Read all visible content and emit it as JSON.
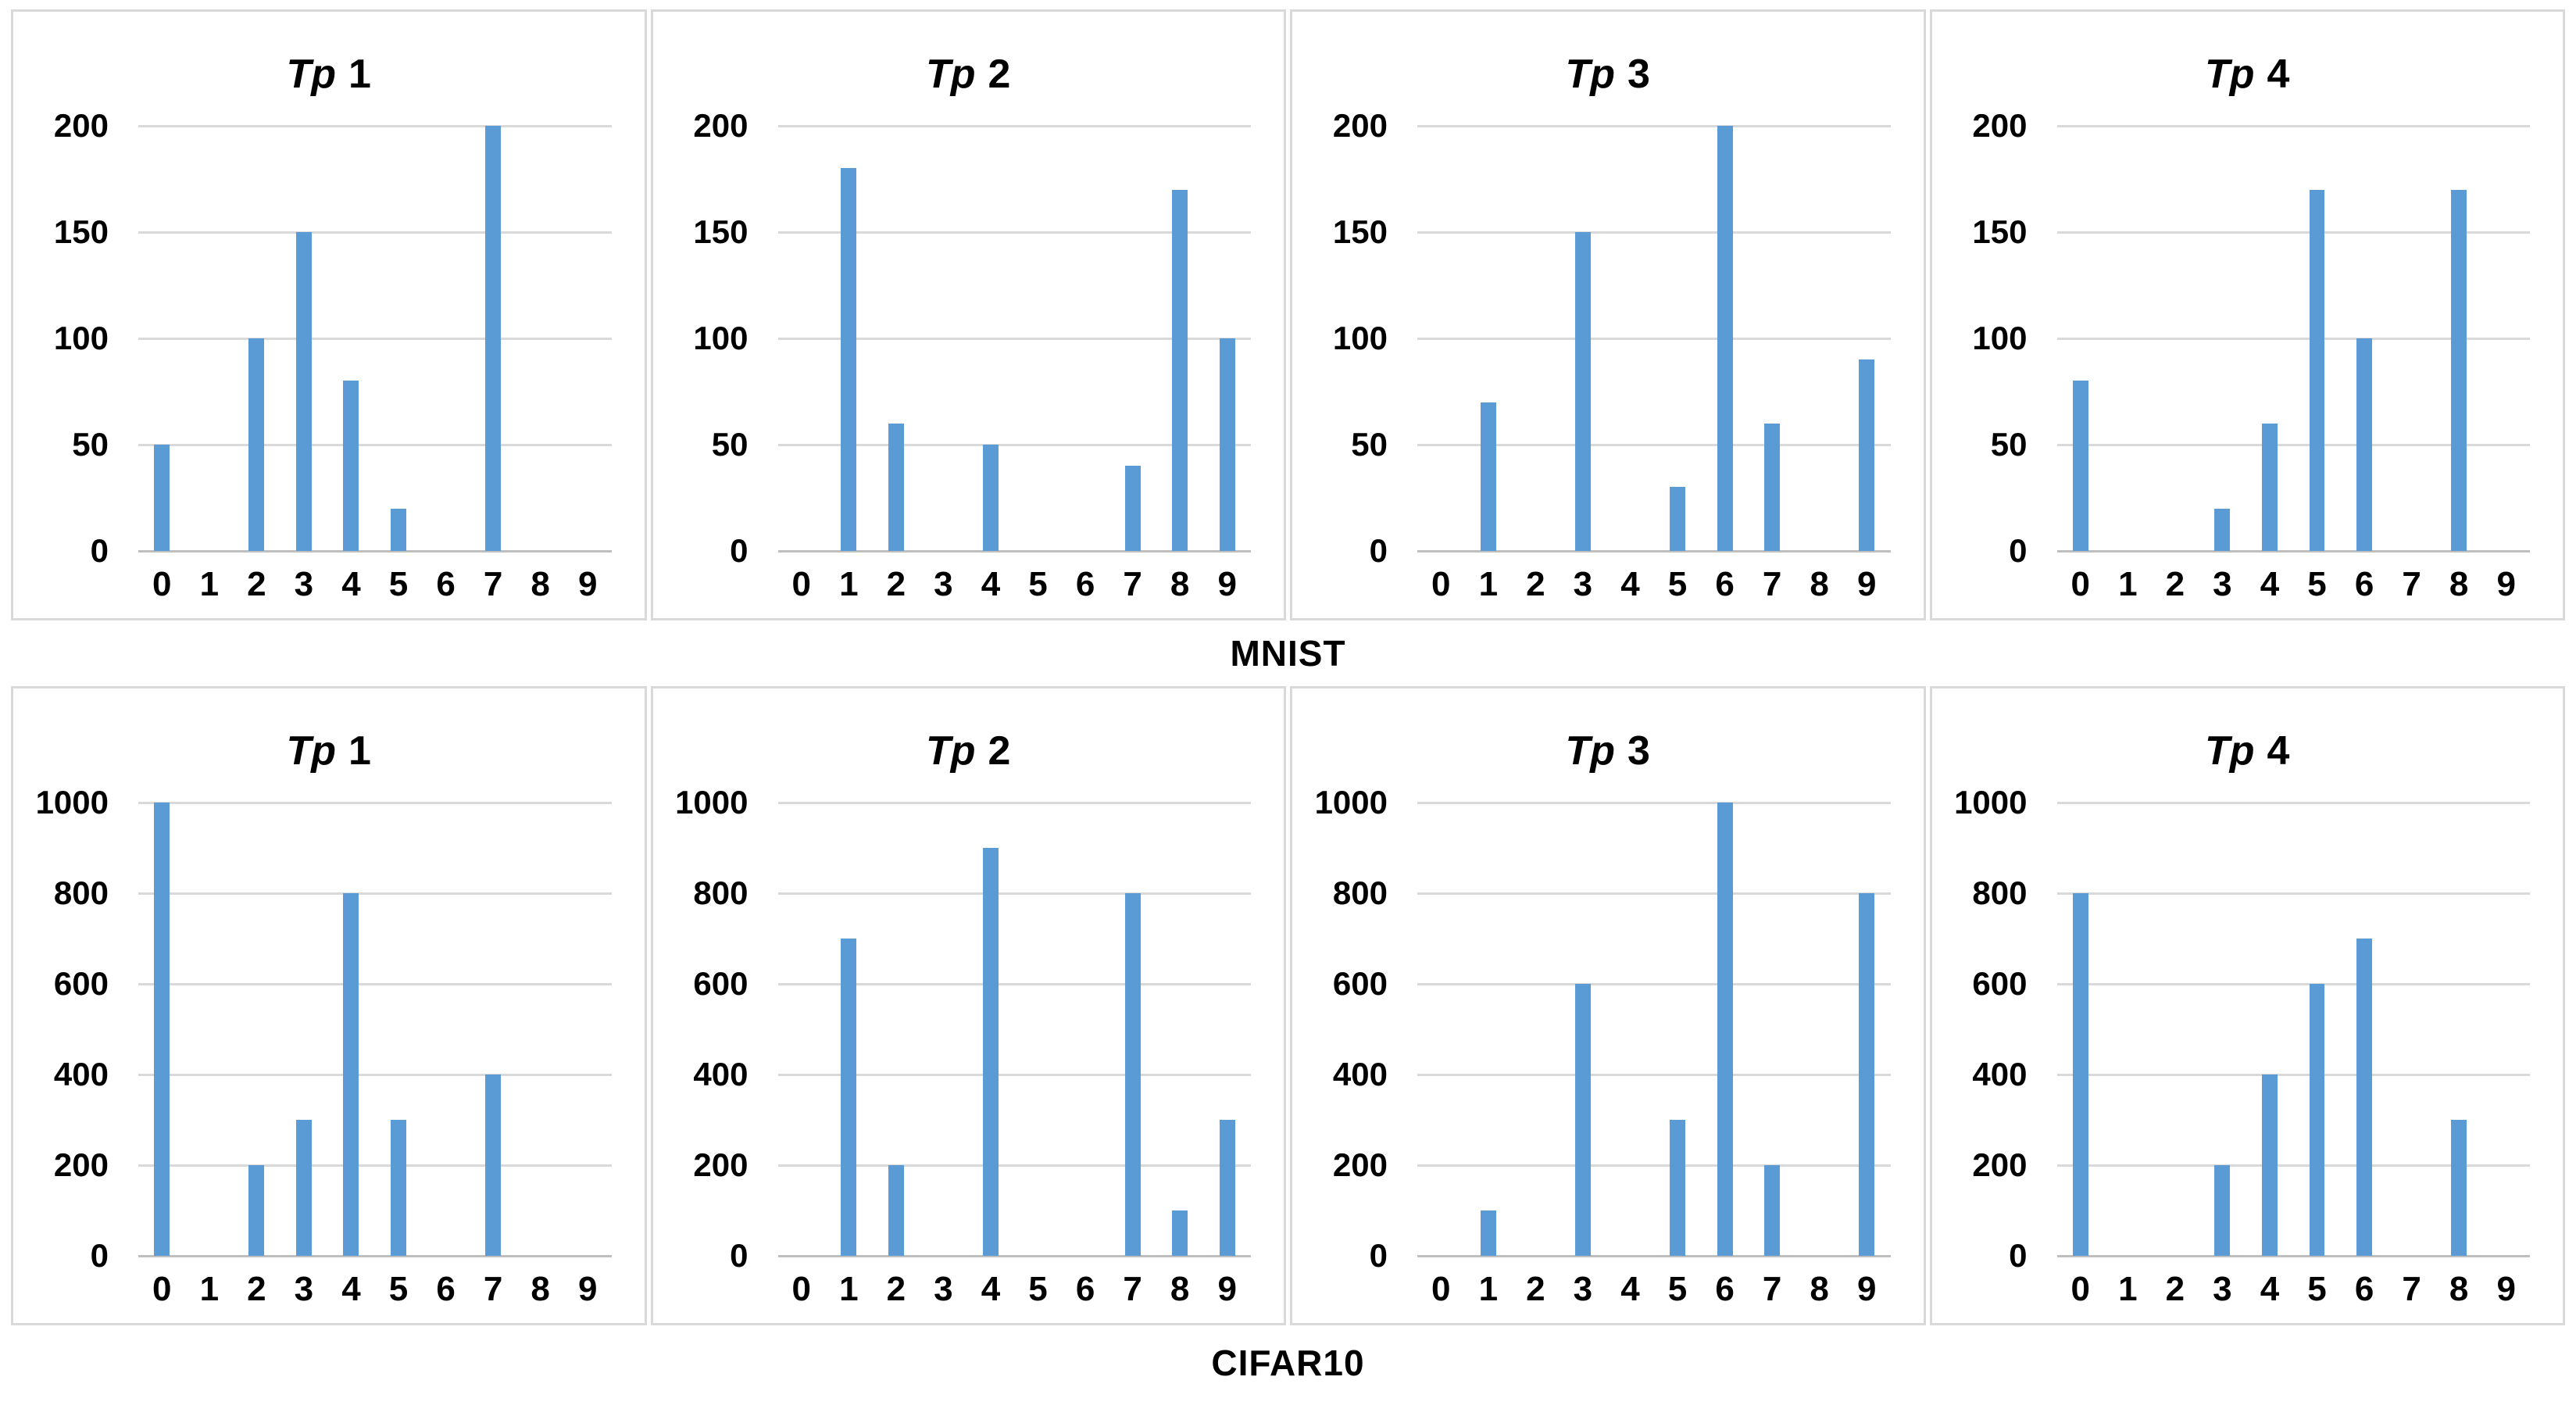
{
  "figure": {
    "row_labels": [
      "MNIST",
      "CIFAR10"
    ]
  },
  "style": {
    "bar_color": "#5B9BD5",
    "grid_color": "#D9D9D9",
    "axis_line_color": "#BFBFBF",
    "panel_border_color": "#D9D9D9",
    "text_color": "#000000"
  },
  "chart_data": [
    {
      "type": "bar",
      "group": "MNIST",
      "title": "Tp 1",
      "title_prefix": "Tp",
      "title_number": "1",
      "categories": [
        "0",
        "1",
        "2",
        "3",
        "4",
        "5",
        "6",
        "7",
        "8",
        "9"
      ],
      "values": [
        50,
        0,
        100,
        150,
        80,
        20,
        0,
        200,
        0,
        0
      ],
      "xlabel": "",
      "ylabel": "",
      "ylim": [
        0,
        200
      ],
      "yticks": [
        0,
        50,
        100,
        150,
        200
      ],
      "grid": true,
      "legend": false
    },
    {
      "type": "bar",
      "group": "MNIST",
      "title": "Tp 2",
      "title_prefix": "Tp",
      "title_number": "2",
      "categories": [
        "0",
        "1",
        "2",
        "3",
        "4",
        "5",
        "6",
        "7",
        "8",
        "9"
      ],
      "values": [
        0,
        180,
        60,
        0,
        50,
        0,
        0,
        40,
        170,
        100
      ],
      "xlabel": "",
      "ylabel": "",
      "ylim": [
        0,
        200
      ],
      "yticks": [
        0,
        50,
        100,
        150,
        200
      ],
      "grid": true,
      "legend": false
    },
    {
      "type": "bar",
      "group": "MNIST",
      "title": "Tp 3",
      "title_prefix": "Tp",
      "title_number": "3",
      "categories": [
        "0",
        "1",
        "2",
        "3",
        "4",
        "5",
        "6",
        "7",
        "8",
        "9"
      ],
      "values": [
        0,
        70,
        0,
        150,
        0,
        30,
        200,
        60,
        0,
        90
      ],
      "xlabel": "",
      "ylabel": "",
      "ylim": [
        0,
        200
      ],
      "yticks": [
        0,
        50,
        100,
        150,
        200
      ],
      "grid": true,
      "legend": false
    },
    {
      "type": "bar",
      "group": "MNIST",
      "title": "Tp 4",
      "title_prefix": "Tp",
      "title_number": "4",
      "categories": [
        "0",
        "1",
        "2",
        "3",
        "4",
        "5",
        "6",
        "7",
        "8",
        "9"
      ],
      "values": [
        80,
        0,
        0,
        20,
        60,
        170,
        100,
        0,
        170,
        0
      ],
      "xlabel": "",
      "ylabel": "",
      "ylim": [
        0,
        200
      ],
      "yticks": [
        0,
        50,
        100,
        150,
        200
      ],
      "grid": true,
      "legend": false
    },
    {
      "type": "bar",
      "group": "CIFAR10",
      "title": "Tp 1",
      "title_prefix": "Tp",
      "title_number": "1",
      "categories": [
        "0",
        "1",
        "2",
        "3",
        "4",
        "5",
        "6",
        "7",
        "8",
        "9"
      ],
      "values": [
        1000,
        0,
        200,
        300,
        800,
        300,
        0,
        400,
        0,
        0
      ],
      "xlabel": "",
      "ylabel": "",
      "ylim": [
        0,
        1000
      ],
      "yticks": [
        0,
        200,
        400,
        600,
        800,
        1000
      ],
      "grid": true,
      "legend": false
    },
    {
      "type": "bar",
      "group": "CIFAR10",
      "title": "Tp 2",
      "title_prefix": "Tp",
      "title_number": "2",
      "categories": [
        "0",
        "1",
        "2",
        "3",
        "4",
        "5",
        "6",
        "7",
        "8",
        "9"
      ],
      "values": [
        0,
        700,
        200,
        0,
        900,
        0,
        0,
        800,
        100,
        300
      ],
      "xlabel": "",
      "ylabel": "",
      "ylim": [
        0,
        1000
      ],
      "yticks": [
        0,
        200,
        400,
        600,
        800,
        1000
      ],
      "grid": true,
      "legend": false
    },
    {
      "type": "bar",
      "group": "CIFAR10",
      "title": "Tp 3",
      "title_prefix": "Tp",
      "title_number": "3",
      "categories": [
        "0",
        "1",
        "2",
        "3",
        "4",
        "5",
        "6",
        "7",
        "8",
        "9"
      ],
      "values": [
        0,
        100,
        0,
        600,
        0,
        300,
        1000,
        200,
        0,
        800
      ],
      "xlabel": "",
      "ylabel": "",
      "ylim": [
        0,
        1000
      ],
      "yticks": [
        0,
        200,
        400,
        600,
        800,
        1000
      ],
      "grid": true,
      "legend": false
    },
    {
      "type": "bar",
      "group": "CIFAR10",
      "title": "Tp 4",
      "title_prefix": "Tp",
      "title_number": "4",
      "categories": [
        "0",
        "1",
        "2",
        "3",
        "4",
        "5",
        "6",
        "7",
        "8",
        "9"
      ],
      "values": [
        800,
        0,
        0,
        200,
        400,
        600,
        700,
        0,
        300,
        0
      ],
      "xlabel": "",
      "ylabel": "",
      "ylim": [
        0,
        1000
      ],
      "yticks": [
        0,
        200,
        400,
        600,
        800,
        1000
      ],
      "grid": true,
      "legend": false
    }
  ]
}
